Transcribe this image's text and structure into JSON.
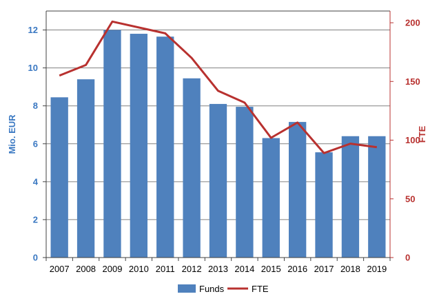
{
  "chart_data": {
    "type": "bar",
    "categories": [
      "2007",
      "2008",
      "2009",
      "2010",
      "2011",
      "2012",
      "2013",
      "2014",
      "2015",
      "2016",
      "2017",
      "2018",
      "2019"
    ],
    "series": [
      {
        "name": "Funds",
        "type": "bar",
        "axis": "left",
        "color": "#4f81bd",
        "values": [
          8.45,
          9.4,
          12.0,
          11.8,
          11.65,
          9.45,
          8.1,
          7.95,
          6.3,
          7.15,
          5.55,
          6.4,
          6.4
        ]
      },
      {
        "name": "FTE",
        "type": "line",
        "axis": "right",
        "color": "#b8312f",
        "values": [
          155,
          164,
          201,
          196,
          191,
          170,
          142,
          132,
          102,
          115,
          89,
          97,
          94
        ]
      }
    ],
    "ylabel": "Mio. EUR",
    "y2label": "FTE",
    "ylim": [
      0,
      13
    ],
    "y2lim": [
      0,
      210
    ],
    "yticks": [
      "0",
      "2",
      "4",
      "6",
      "8",
      "10",
      "12"
    ],
    "y2ticks": [
      "0",
      "50",
      "100",
      "150",
      "200"
    ],
    "grid": true,
    "legend_position": "bottom",
    "colors": {
      "left_axis": "#3a78c2",
      "right_axis": "#b8312f",
      "grid": "#808080"
    }
  }
}
